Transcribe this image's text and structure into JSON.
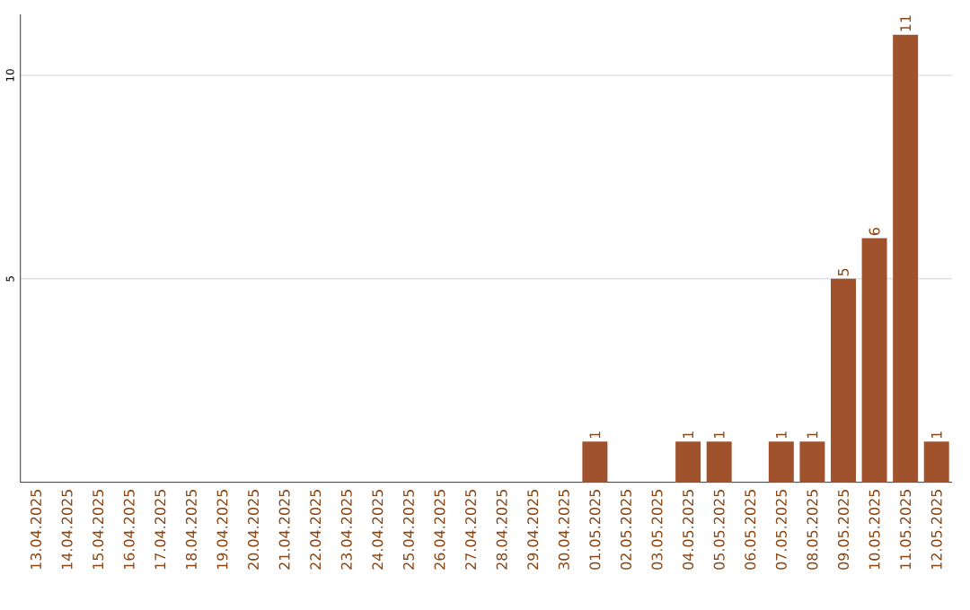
{
  "chart_data": {
    "type": "bar",
    "categories": [
      "13.04.2025",
      "14.04.2025",
      "15.04.2025",
      "16.04.2025",
      "17.04.2025",
      "18.04.2025",
      "19.04.2025",
      "20.04.2025",
      "21.04.2025",
      "22.04.2025",
      "23.04.2025",
      "24.04.2025",
      "25.04.2025",
      "26.04.2025",
      "27.04.2025",
      "28.04.2025",
      "29.04.2025",
      "30.04.2025",
      "01.05.2025",
      "02.05.2025",
      "03.05.2025",
      "04.05.2025",
      "05.05.2025",
      "06.05.2025",
      "07.05.2025",
      "08.05.2025",
      "09.05.2025",
      "10.05.2025",
      "11.05.2025",
      "12.05.2025"
    ],
    "values": [
      0,
      0,
      0,
      0,
      0,
      0,
      0,
      0,
      0,
      0,
      0,
      0,
      0,
      0,
      0,
      0,
      0,
      0,
      1,
      0,
      0,
      1,
      1,
      0,
      1,
      1,
      5,
      6,
      11,
      1
    ],
    "value_labels": [
      null,
      null,
      null,
      null,
      null,
      null,
      null,
      null,
      null,
      null,
      null,
      null,
      null,
      null,
      null,
      null,
      null,
      null,
      "1",
      null,
      null,
      "1",
      "1",
      null,
      "1",
      "1",
      "5",
      "6",
      "11",
      "1"
    ],
    "color": "#a0522d",
    "ylim": [
      0,
      11.5
    ],
    "yticks": [
      5,
      10
    ],
    "grid": "y"
  }
}
